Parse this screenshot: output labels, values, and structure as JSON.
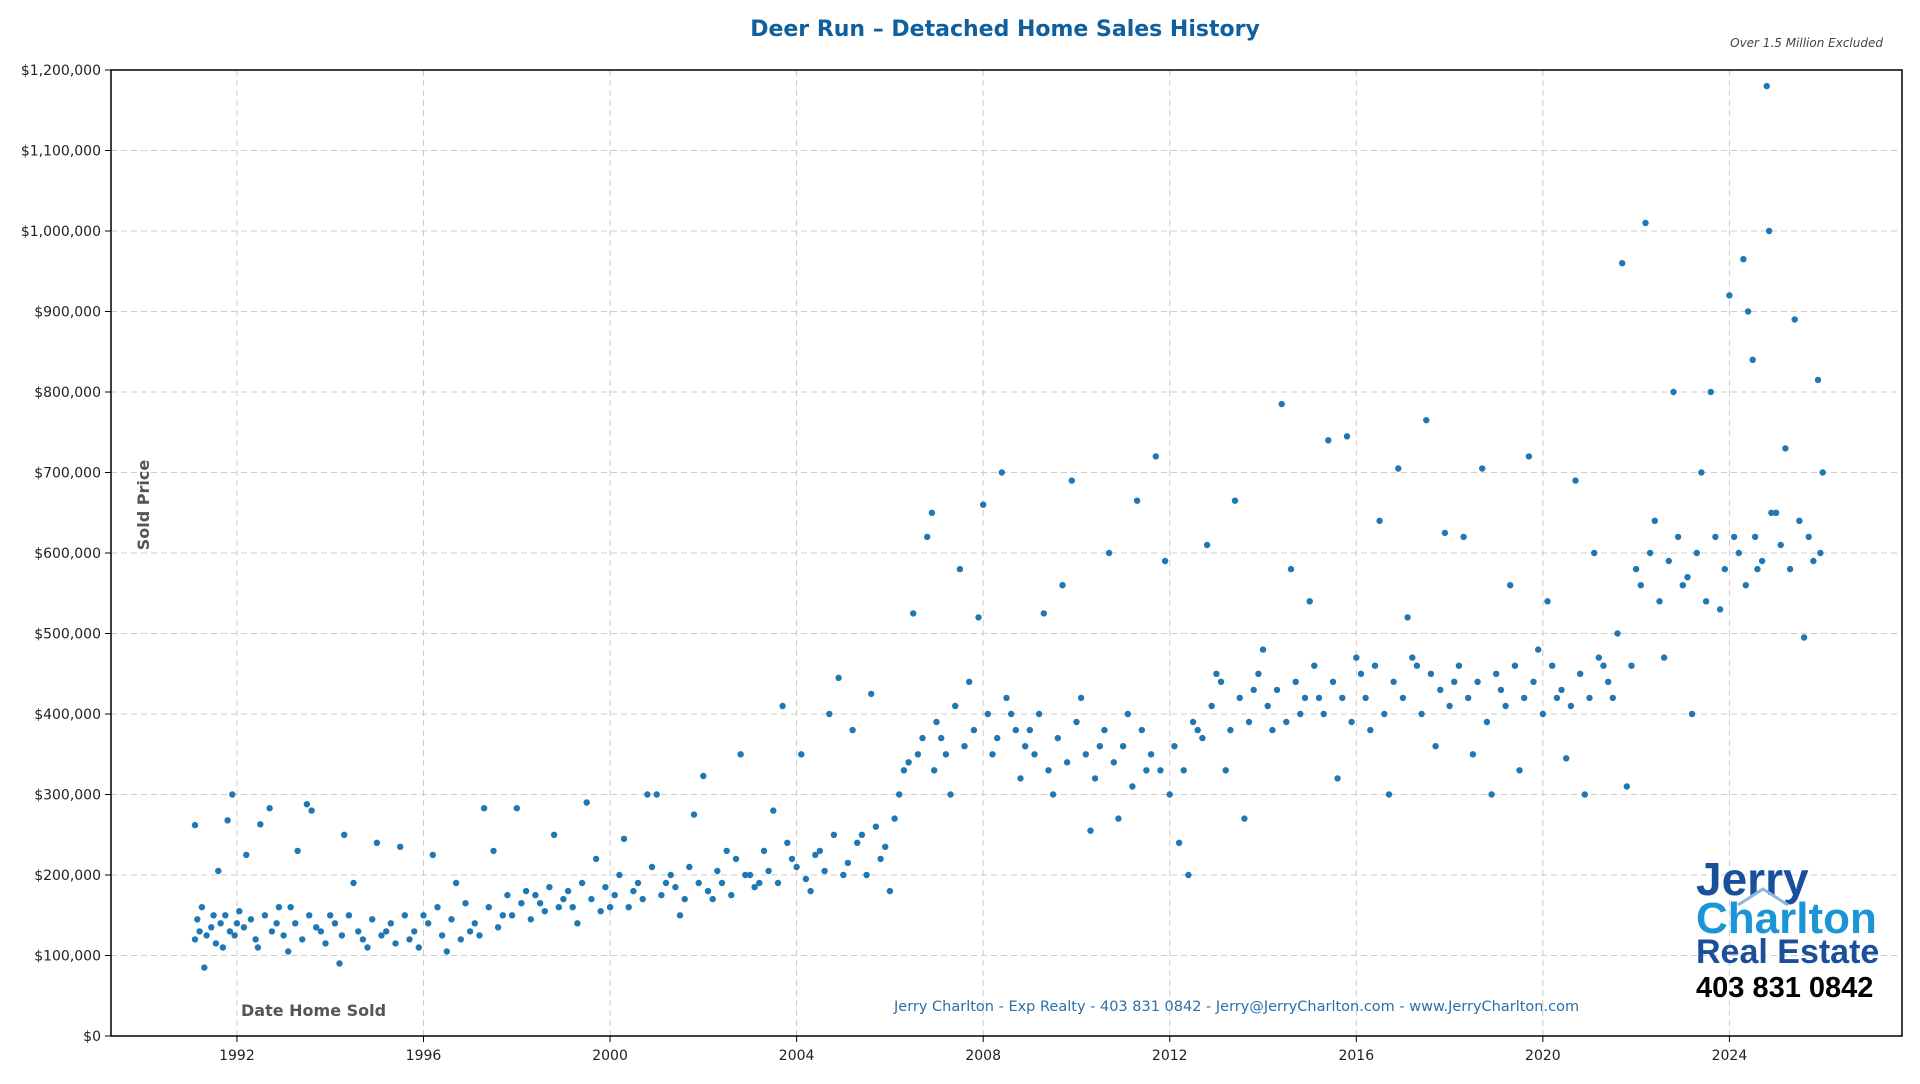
{
  "chart_data": {
    "type": "scatter",
    "title": "Deer Run – Detached Home Sales History",
    "note": "Over 1.5 Million Excluded",
    "xlabel": "Date Home Sold",
    "ylabel": "Sold Price",
    "xlim": [
      1989.3,
      2027.7
    ],
    "ylim": [
      0,
      1200000
    ],
    "x_ticks": [
      "1992",
      "1996",
      "2000",
      "2004",
      "2008",
      "2012",
      "2016",
      "2020",
      "2024"
    ],
    "x_tick_values": [
      1992,
      1996,
      2000,
      2004,
      2008,
      2012,
      2016,
      2020,
      2024
    ],
    "y_ticks": [
      "$0",
      "$100,000",
      "$200,000",
      "$300,000",
      "$400,000",
      "$500,000",
      "$600,000",
      "$700,000",
      "$800,000",
      "$900,000",
      "$1,000,000",
      "$1,100,000",
      "$1,200,000"
    ],
    "y_tick_values": [
      0,
      100000,
      200000,
      300000,
      400000,
      500000,
      600000,
      700000,
      800000,
      900000,
      1000000,
      1100000,
      1200000
    ],
    "grid": true,
    "grid_style": "dashed",
    "marker_color": "#1f77b4",
    "points": [
      [
        1991.1,
        262000
      ],
      [
        1991.2,
        130000
      ],
      [
        1991.3,
        85000
      ],
      [
        1991.5,
        150000
      ],
      [
        1991.6,
        205000
      ],
      [
        1991.8,
        268000
      ],
      [
        1991.9,
        300000
      ],
      [
        1991.7,
        110000
      ],
      [
        1992.0,
        140000
      ],
      [
        1992.2,
        225000
      ],
      [
        1992.4,
        120000
      ],
      [
        1992.5,
        263000
      ],
      [
        1992.7,
        283000
      ],
      [
        1992.9,
        160000
      ],
      [
        1993.1,
        105000
      ],
      [
        1993.3,
        230000
      ],
      [
        1993.5,
        288000
      ],
      [
        1993.6,
        280000
      ],
      [
        1993.8,
        130000
      ],
      [
        1994.0,
        150000
      ],
      [
        1994.2,
        90000
      ],
      [
        1994.3,
        250000
      ],
      [
        1994.5,
        190000
      ],
      [
        1994.8,
        110000
      ],
      [
        1995.0,
        240000
      ],
      [
        1995.2,
        130000
      ],
      [
        1995.5,
        235000
      ],
      [
        1995.7,
        120000
      ],
      [
        1996.0,
        150000
      ],
      [
        1996.2,
        225000
      ],
      [
        1996.5,
        105000
      ],
      [
        1996.7,
        190000
      ],
      [
        1997.0,
        130000
      ],
      [
        1997.3,
        283000
      ],
      [
        1997.5,
        230000
      ],
      [
        1997.7,
        150000
      ],
      [
        1998.0,
        283000
      ],
      [
        1998.2,
        180000
      ],
      [
        1998.5,
        165000
      ],
      [
        1998.8,
        250000
      ],
      [
        1999.0,
        170000
      ],
      [
        1999.3,
        140000
      ],
      [
        1999.5,
        290000
      ],
      [
        1999.7,
        220000
      ],
      [
        2000.0,
        160000
      ],
      [
        2000.3,
        245000
      ],
      [
        2000.5,
        180000
      ],
      [
        2000.8,
        300000
      ],
      [
        2001.0,
        300000
      ],
      [
        2001.2,
        190000
      ],
      [
        2001.5,
        150000
      ],
      [
        2001.8,
        275000
      ],
      [
        2002.0,
        323000
      ],
      [
        2002.2,
        170000
      ],
      [
        2002.5,
        230000
      ],
      [
        2002.8,
        350000
      ],
      [
        2003.0,
        200000
      ],
      [
        2003.2,
        190000
      ],
      [
        2003.5,
        280000
      ],
      [
        2003.7,
        410000
      ],
      [
        2003.9,
        220000
      ],
      [
        2004.1,
        350000
      ],
      [
        2004.3,
        180000
      ],
      [
        2004.5,
        230000
      ],
      [
        2004.7,
        400000
      ],
      [
        2004.9,
        445000
      ],
      [
        2005.0,
        200000
      ],
      [
        2005.2,
        380000
      ],
      [
        2005.4,
        250000
      ],
      [
        2005.6,
        425000
      ],
      [
        2005.8,
        220000
      ],
      [
        2006.0,
        180000
      ],
      [
        2006.1,
        270000
      ],
      [
        2006.3,
        330000
      ],
      [
        2006.5,
        525000
      ],
      [
        2006.6,
        350000
      ],
      [
        2006.8,
        620000
      ],
      [
        2006.9,
        650000
      ],
      [
        2007.1,
        370000
      ],
      [
        2007.3,
        300000
      ],
      [
        2007.5,
        580000
      ],
      [
        2007.7,
        440000
      ],
      [
        2007.9,
        520000
      ],
      [
        2008.0,
        660000
      ],
      [
        2008.2,
        350000
      ],
      [
        2008.4,
        700000
      ],
      [
        2008.6,
        400000
      ],
      [
        2008.8,
        320000
      ],
      [
        2009.0,
        380000
      ],
      [
        2009.3,
        525000
      ],
      [
        2009.5,
        300000
      ],
      [
        2009.7,
        560000
      ],
      [
        2009.9,
        690000
      ],
      [
        2010.1,
        420000
      ],
      [
        2010.3,
        255000
      ],
      [
        2010.5,
        360000
      ],
      [
        2010.7,
        600000
      ],
      [
        2010.9,
        270000
      ],
      [
        2011.1,
        400000
      ],
      [
        2011.3,
        665000
      ],
      [
        2011.5,
        330000
      ],
      [
        2011.7,
        720000
      ],
      [
        2011.9,
        590000
      ],
      [
        2012.0,
        300000
      ],
      [
        2012.2,
        240000
      ],
      [
        2012.4,
        200000
      ],
      [
        2012.6,
        380000
      ],
      [
        2012.8,
        610000
      ],
      [
        2013.0,
        450000
      ],
      [
        2013.2,
        330000
      ],
      [
        2013.4,
        665000
      ],
      [
        2013.6,
        270000
      ],
      [
        2013.8,
        430000
      ],
      [
        2014.0,
        480000
      ],
      [
        2014.2,
        380000
      ],
      [
        2014.4,
        785000
      ],
      [
        2014.6,
        580000
      ],
      [
        2014.8,
        400000
      ],
      [
        2015.0,
        540000
      ],
      [
        2015.2,
        420000
      ],
      [
        2015.4,
        740000
      ],
      [
        2015.6,
        320000
      ],
      [
        2015.8,
        745000
      ],
      [
        2016.0,
        470000
      ],
      [
        2016.3,
        380000
      ],
      [
        2016.5,
        640000
      ],
      [
        2016.7,
        300000
      ],
      [
        2016.9,
        705000
      ],
      [
        2017.1,
        520000
      ],
      [
        2017.3,
        460000
      ],
      [
        2017.5,
        765000
      ],
      [
        2017.7,
        360000
      ],
      [
        2017.9,
        625000
      ],
      [
        2018.1,
        440000
      ],
      [
        2018.3,
        620000
      ],
      [
        2018.5,
        350000
      ],
      [
        2018.7,
        705000
      ],
      [
        2018.9,
        300000
      ],
      [
        2019.1,
        430000
      ],
      [
        2019.3,
        560000
      ],
      [
        2019.5,
        330000
      ],
      [
        2019.7,
        720000
      ],
      [
        2019.9,
        480000
      ],
      [
        2020.1,
        540000
      ],
      [
        2020.3,
        420000
      ],
      [
        2020.5,
        345000
      ],
      [
        2020.7,
        690000
      ],
      [
        2020.9,
        300000
      ],
      [
        2021.1,
        600000
      ],
      [
        2021.3,
        460000
      ],
      [
        2021.5,
        420000
      ],
      [
        2021.7,
        960000
      ],
      [
        2021.8,
        310000
      ],
      [
        2022.0,
        580000
      ],
      [
        2022.2,
        1010000
      ],
      [
        2022.4,
        640000
      ],
      [
        2022.6,
        470000
      ],
      [
        2022.8,
        800000
      ],
      [
        2023.0,
        560000
      ],
      [
        2023.2,
        400000
      ],
      [
        2023.4,
        700000
      ],
      [
        2023.6,
        800000
      ],
      [
        2023.8,
        530000
      ],
      [
        2024.0,
        920000
      ],
      [
        2024.1,
        620000
      ],
      [
        2024.3,
        965000
      ],
      [
        2024.4,
        900000
      ],
      [
        2024.5,
        840000
      ],
      [
        2024.6,
        580000
      ],
      [
        2024.8,
        1180000
      ],
      [
        2024.85,
        1000000
      ],
      [
        2025.0,
        650000
      ],
      [
        2025.2,
        730000
      ],
      [
        2025.4,
        890000
      ],
      [
        2025.6,
        495000
      ],
      [
        2025.8,
        590000
      ],
      [
        2025.9,
        815000
      ],
      [
        2026.0,
        700000
      ],
      [
        1991.1,
        120000
      ],
      [
        1991.15,
        145000
      ],
      [
        1991.25,
        160000
      ],
      [
        1991.35,
        125000
      ],
      [
        1991.45,
        135000
      ],
      [
        1991.55,
        115000
      ],
      [
        1991.65,
        140000
      ],
      [
        1991.75,
        150000
      ],
      [
        1991.85,
        130000
      ],
      [
        1991.95,
        125000
      ],
      [
        1992.05,
        155000
      ],
      [
        1992.15,
        135000
      ],
      [
        1992.3,
        145000
      ],
      [
        1992.45,
        110000
      ],
      [
        1992.6,
        150000
      ],
      [
        1992.75,
        130000
      ],
      [
        1992.85,
        140000
      ],
      [
        1993.0,
        125000
      ],
      [
        1993.15,
        160000
      ],
      [
        1993.25,
        140000
      ],
      [
        1993.4,
        120000
      ],
      [
        1993.55,
        150000
      ],
      [
        1993.7,
        135000
      ],
      [
        1993.9,
        115000
      ],
      [
        1994.1,
        140000
      ],
      [
        1994.25,
        125000
      ],
      [
        1994.4,
        150000
      ],
      [
        1994.6,
        130000
      ],
      [
        1994.7,
        120000
      ],
      [
        1994.9,
        145000
      ],
      [
        1995.1,
        125000
      ],
      [
        1995.3,
        140000
      ],
      [
        1995.4,
        115000
      ],
      [
        1995.6,
        150000
      ],
      [
        1995.8,
        130000
      ],
      [
        1995.9,
        110000
      ],
      [
        1996.1,
        140000
      ],
      [
        1996.3,
        160000
      ],
      [
        1996.4,
        125000
      ],
      [
        1996.6,
        145000
      ],
      [
        1996.8,
        120000
      ],
      [
        1996.9,
        165000
      ],
      [
        1997.1,
        140000
      ],
      [
        1997.2,
        125000
      ],
      [
        1997.4,
        160000
      ],
      [
        1997.6,
        135000
      ],
      [
        1997.8,
        175000
      ],
      [
        1997.9,
        150000
      ],
      [
        1998.1,
        165000
      ],
      [
        1998.3,
        145000
      ],
      [
        1998.4,
        175000
      ],
      [
        1998.6,
        155000
      ],
      [
        1998.7,
        185000
      ],
      [
        1998.9,
        160000
      ],
      [
        1999.1,
        180000
      ],
      [
        1999.2,
        160000
      ],
      [
        1999.4,
        190000
      ],
      [
        1999.6,
        170000
      ],
      [
        1999.8,
        155000
      ],
      [
        1999.9,
        185000
      ],
      [
        2000.1,
        175000
      ],
      [
        2000.2,
        200000
      ],
      [
        2000.4,
        160000
      ],
      [
        2000.6,
        190000
      ],
      [
        2000.7,
        170000
      ],
      [
        2000.9,
        210000
      ],
      [
        2001.1,
        175000
      ],
      [
        2001.3,
        200000
      ],
      [
        2001.4,
        185000
      ],
      [
        2001.6,
        170000
      ],
      [
        2001.7,
        210000
      ],
      [
        2001.9,
        190000
      ],
      [
        2002.1,
        180000
      ],
      [
        2002.3,
        205000
      ],
      [
        2002.4,
        190000
      ],
      [
        2002.6,
        175000
      ],
      [
        2002.7,
        220000
      ],
      [
        2002.9,
        200000
      ],
      [
        2003.1,
        185000
      ],
      [
        2003.3,
        230000
      ],
      [
        2003.4,
        205000
      ],
      [
        2003.6,
        190000
      ],
      [
        2003.8,
        240000
      ],
      [
        2004.0,
        210000
      ],
      [
        2004.2,
        195000
      ],
      [
        2004.4,
        225000
      ],
      [
        2004.6,
        205000
      ],
      [
        2004.8,
        250000
      ],
      [
        2005.1,
        215000
      ],
      [
        2005.3,
        240000
      ],
      [
        2005.5,
        200000
      ],
      [
        2005.7,
        260000
      ],
      [
        2005.9,
        235000
      ],
      [
        2006.2,
        300000
      ],
      [
        2006.4,
        340000
      ],
      [
        2006.7,
        370000
      ],
      [
        2006.95,
        330000
      ],
      [
        2007.0,
        390000
      ],
      [
        2007.2,
        350000
      ],
      [
        2007.4,
        410000
      ],
      [
        2007.6,
        360000
      ],
      [
        2007.8,
        380000
      ],
      [
        2008.1,
        400000
      ],
      [
        2008.3,
        370000
      ],
      [
        2008.5,
        420000
      ],
      [
        2008.7,
        380000
      ],
      [
        2008.9,
        360000
      ],
      [
        2009.1,
        350000
      ],
      [
        2009.2,
        400000
      ],
      [
        2009.4,
        330000
      ],
      [
        2009.6,
        370000
      ],
      [
        2009.8,
        340000
      ],
      [
        2010.0,
        390000
      ],
      [
        2010.2,
        350000
      ],
      [
        2010.4,
        320000
      ],
      [
        2010.6,
        380000
      ],
      [
        2010.8,
        340000
      ],
      [
        2011.0,
        360000
      ],
      [
        2011.2,
        310000
      ],
      [
        2011.4,
        380000
      ],
      [
        2011.6,
        350000
      ],
      [
        2011.8,
        330000
      ],
      [
        2012.1,
        360000
      ],
      [
        2012.3,
        330000
      ],
      [
        2012.5,
        390000
      ],
      [
        2012.7,
        370000
      ],
      [
        2012.9,
        410000
      ],
      [
        2013.1,
        440000
      ],
      [
        2013.3,
        380000
      ],
      [
        2013.5,
        420000
      ],
      [
        2013.7,
        390000
      ],
      [
        2013.9,
        450000
      ],
      [
        2014.1,
        410000
      ],
      [
        2014.3,
        430000
      ],
      [
        2014.5,
        390000
      ],
      [
        2014.7,
        440000
      ],
      [
        2014.9,
        420000
      ],
      [
        2015.1,
        460000
      ],
      [
        2015.3,
        400000
      ],
      [
        2015.5,
        440000
      ],
      [
        2015.7,
        420000
      ],
      [
        2015.9,
        390000
      ],
      [
        2016.1,
        450000
      ],
      [
        2016.2,
        420000
      ],
      [
        2016.4,
        460000
      ],
      [
        2016.6,
        400000
      ],
      [
        2016.8,
        440000
      ],
      [
        2017.0,
        420000
      ],
      [
        2017.2,
        470000
      ],
      [
        2017.4,
        400000
      ],
      [
        2017.6,
        450000
      ],
      [
        2017.8,
        430000
      ],
      [
        2018.0,
        410000
      ],
      [
        2018.2,
        460000
      ],
      [
        2018.4,
        420000
      ],
      [
        2018.6,
        440000
      ],
      [
        2018.8,
        390000
      ],
      [
        2019.0,
        450000
      ],
      [
        2019.2,
        410000
      ],
      [
        2019.4,
        460000
      ],
      [
        2019.6,
        420000
      ],
      [
        2019.8,
        440000
      ],
      [
        2020.0,
        400000
      ],
      [
        2020.2,
        460000
      ],
      [
        2020.4,
        430000
      ],
      [
        2020.6,
        410000
      ],
      [
        2020.8,
        450000
      ],
      [
        2021.0,
        420000
      ],
      [
        2021.2,
        470000
      ],
      [
        2021.4,
        440000
      ],
      [
        2021.6,
        500000
      ],
      [
        2021.9,
        460000
      ],
      [
        2022.1,
        560000
      ],
      [
        2022.3,
        600000
      ],
      [
        2022.5,
        540000
      ],
      [
        2022.7,
        590000
      ],
      [
        2022.9,
        620000
      ],
      [
        2023.1,
        570000
      ],
      [
        2023.3,
        600000
      ],
      [
        2023.5,
        540000
      ],
      [
        2023.7,
        620000
      ],
      [
        2023.9,
        580000
      ],
      [
        2024.2,
        600000
      ],
      [
        2024.35,
        560000
      ],
      [
        2024.55,
        620000
      ],
      [
        2024.7,
        590000
      ],
      [
        2024.9,
        650000
      ],
      [
        2025.1,
        610000
      ],
      [
        2025.3,
        580000
      ],
      [
        2025.5,
        640000
      ],
      [
        2025.7,
        620000
      ],
      [
        2025.95,
        600000
      ]
    ]
  },
  "footer": {
    "contact": "Jerry Charlton - Exp Realty - 403 831 0842 - Jerry@JerryCharlton.com - www.JerryCharlton.com"
  },
  "logo": {
    "line1": "Jerry",
    "line2": "Charlton",
    "line3": "Real Estate",
    "phone": "403 831 0842"
  }
}
